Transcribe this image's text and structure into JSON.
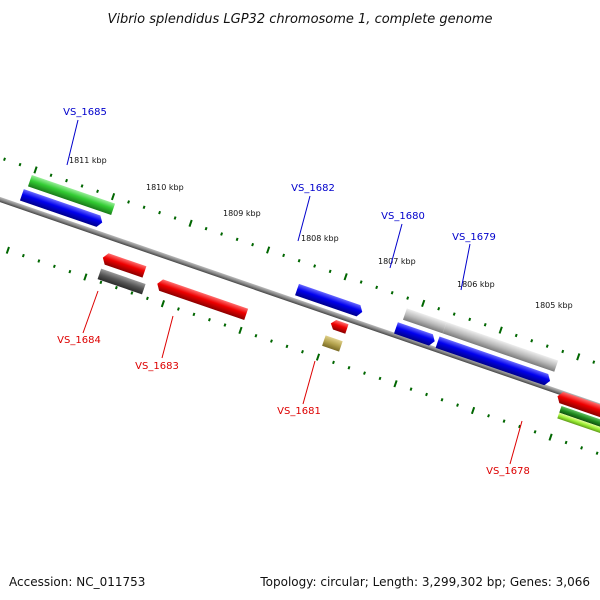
{
  "title": "Vibrio splendidus LGP32 chromosome 1, complete genome",
  "footer": {
    "accession": "Accession: NC_011753",
    "summary": "Topology: circular; Length: 3,299,302 bp; Genes: 3,066"
  },
  "ticks": [
    {
      "label": "1811 kbp"
    },
    {
      "label": "1810 kbp"
    },
    {
      "label": "1809 kbp"
    },
    {
      "label": "1808 kbp"
    },
    {
      "label": "1807 kbp"
    },
    {
      "label": "1806 kbp"
    },
    {
      "label": "1805 kbp"
    }
  ],
  "genes_top": [
    {
      "label": "VS_1685",
      "color": "#0000cc"
    },
    {
      "label": "VS_1682",
      "color": "#0000cc"
    },
    {
      "label": "VS_1680",
      "color": "#0000cc"
    },
    {
      "label": "VS_1679",
      "color": "#0000cc"
    }
  ],
  "genes_bottom": [
    {
      "label": "VS_1684",
      "color": "#dd0000"
    },
    {
      "label": "VS_1683",
      "color": "#dd0000"
    },
    {
      "label": "VS_1681",
      "color": "#dd0000"
    },
    {
      "label": "VS_1678",
      "color": "#dd0000"
    }
  ],
  "feature_colors": {
    "forward": "#0000ee",
    "reverse": "#ee0000",
    "green": "#33cc33",
    "lime": "#99ee33",
    "gray": "#bbbbbb",
    "darkgray": "#555555",
    "olive": "#b3a24d",
    "steelblue": "#4477bb",
    "axis": "#888888",
    "ticks": "#006600"
  }
}
